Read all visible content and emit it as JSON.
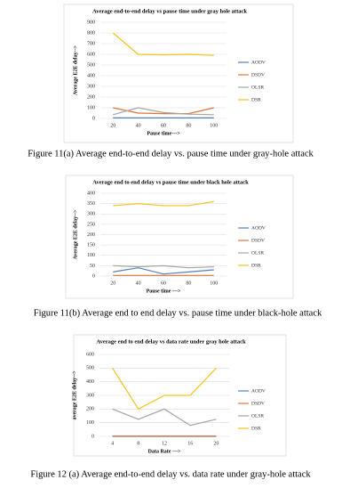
{
  "chart_data": [
    {
      "type": "line",
      "title": "Average end-to-end delay vs pause time under gray hole attack",
      "x_label": "Pause time--->",
      "y_label": "Average E2E delay-->",
      "categories": [
        "20",
        "40",
        "60",
        "80",
        "100"
      ],
      "series": [
        {
          "name": "AODV",
          "color": "#4f81bd",
          "values": [
            5,
            5,
            5,
            5,
            5
          ]
        },
        {
          "name": "DSDV",
          "color": "#e0763a",
          "values": [
            100,
            50,
            45,
            45,
            100
          ]
        },
        {
          "name": "OLSR",
          "color": "#a5a5a5",
          "values": [
            35,
            100,
            55,
            40,
            35
          ]
        },
        {
          "name": "DSR",
          "color": "#f5c21b",
          "values": [
            800,
            600,
            595,
            600,
            590
          ]
        }
      ],
      "ylim": [
        0,
        900
      ],
      "yticks": [
        0,
        100,
        200,
        300,
        400,
        500,
        600,
        700,
        800,
        900
      ],
      "grid": true
    },
    {
      "type": "line",
      "title": "Average end to end delay vs pause time under black hole attack",
      "x_label": "Pause time --->",
      "y_label": "Average E2E delay-->",
      "categories": [
        "20",
        "40",
        "60",
        "80",
        "100"
      ],
      "series": [
        {
          "name": "AODV",
          "color": "#4f81bd",
          "values": [
            20,
            40,
            10,
            20,
            30
          ]
        },
        {
          "name": "DSDV",
          "color": "#e0763a",
          "values": [
            3,
            3,
            3,
            3,
            3
          ]
        },
        {
          "name": "OLSR",
          "color": "#a5a5a5",
          "values": [
            50,
            45,
            50,
            40,
            45
          ]
        },
        {
          "name": "DSR",
          "color": "#f5c21b",
          "values": [
            340,
            350,
            340,
            340,
            360
          ]
        }
      ],
      "ylim": [
        0,
        400
      ],
      "yticks": [
        0,
        50,
        100,
        150,
        200,
        250,
        300,
        350,
        400
      ],
      "grid": true
    },
    {
      "type": "line",
      "title": "Average end to end delay vs data rate under gray hole attack",
      "x_label": "Data Rate --->",
      "y_label": "average E2E delay-->",
      "categories": [
        "4",
        "8",
        "12",
        "16",
        "20"
      ],
      "series": [
        {
          "name": "AODV",
          "color": "#4f81bd",
          "values": [
            0,
            0,
            0,
            0,
            0
          ]
        },
        {
          "name": "DSDV",
          "color": "#e0763a",
          "values": [
            2,
            2,
            2,
            2,
            2
          ]
        },
        {
          "name": "OLSR",
          "color": "#a5a5a5",
          "values": [
            200,
            125,
            200,
            80,
            125
          ]
        },
        {
          "name": "DSR",
          "color": "#f5c21b",
          "values": [
            500,
            200,
            300,
            300,
            500
          ]
        }
      ],
      "ylim": [
        0,
        600
      ],
      "yticks": [
        0,
        100,
        200,
        300,
        400,
        500,
        600
      ],
      "grid": true
    }
  ],
  "captions": [
    "Figure 11(a) Average end-to-end delay vs. pause time under gray-hole attack",
    "Figure 11(b) Average end to end delay vs. pause time under black-hole attack",
    "Figure 12  (a) Average end-to-end delay vs. data rate under gray-hole attack"
  ]
}
